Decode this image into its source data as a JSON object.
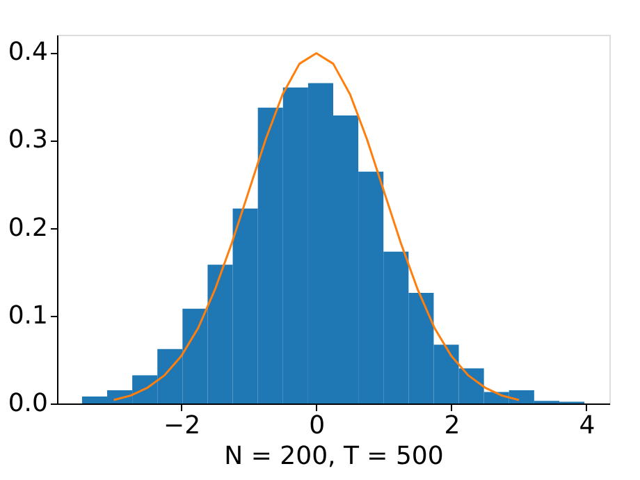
{
  "chart_data": {
    "type": "histogram",
    "xlabel": "N = 200, T = 500",
    "xlim": [
      -3.84,
      4.34
    ],
    "ylim": [
      0,
      0.42
    ],
    "xticks": [
      -2,
      0,
      2,
      4
    ],
    "yticks": [
      {
        "value": 0,
        "label": "0.0"
      },
      0.1,
      0.2,
      0.3,
      0.4
    ],
    "grid": false,
    "series": [
      {
        "color": "#1f77b4",
        "bins": [
          -3.47,
          -3.098,
          -2.726,
          -2.354,
          -1.982,
          -1.61,
          -1.238,
          -0.866,
          -0.494,
          -0.122,
          0.25,
          0.622,
          0.994,
          1.366,
          1.738,
          2.11,
          2.482,
          2.854,
          3.226,
          3.598,
          3.97
        ],
        "values": [
          0.008,
          0.015,
          0.032,
          0.062,
          0.108,
          0.158,
          0.222,
          0.337,
          0.36,
          0.365,
          0.328,
          0.264,
          0.173,
          0.126,
          0.067,
          0.04,
          0.013,
          0.015,
          0.003,
          0.002
        ]
      },
      {
        "type": "line",
        "color": "#ff7f0e",
        "x": [
          -3,
          -2.75,
          -2.5,
          -2.25,
          -2,
          -1.75,
          -1.5,
          -1.25,
          -1,
          -0.75,
          -0.5,
          -0.25,
          0,
          0.25,
          0.5,
          0.75,
          1,
          1.25,
          1.5,
          1.75,
          2,
          2.25,
          2.5,
          2.75,
          3
        ],
        "values": [
          0.004,
          0.009,
          0.018,
          0.032,
          0.054,
          0.086,
          0.13,
          0.183,
          0.242,
          0.301,
          0.352,
          0.387,
          0.399,
          0.387,
          0.352,
          0.301,
          0.242,
          0.183,
          0.13,
          0.086,
          0.054,
          0.032,
          0.018,
          0.009,
          0.004
        ]
      }
    ]
  }
}
